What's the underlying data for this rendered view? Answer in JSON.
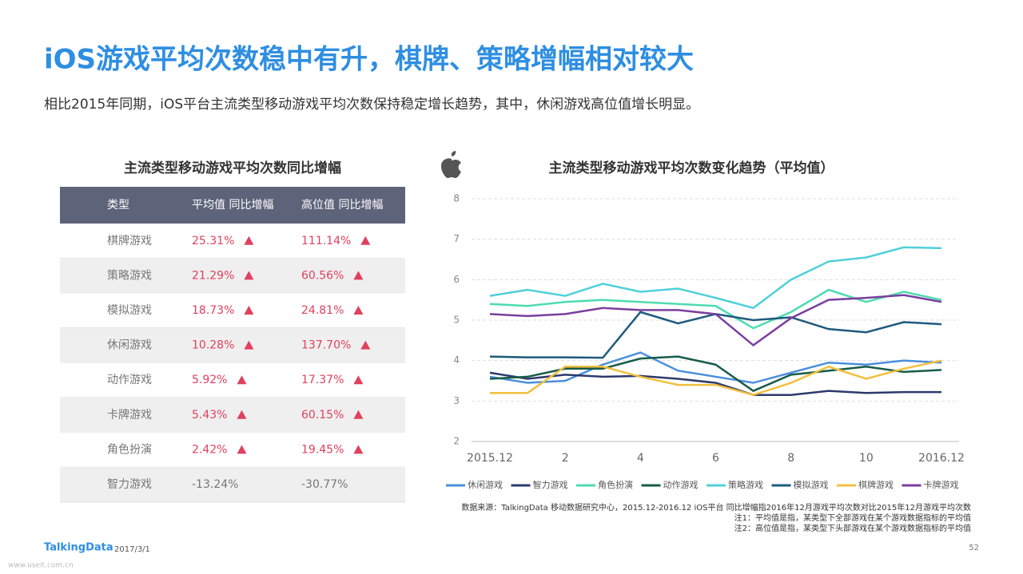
{
  "header": {
    "title": "iOS游戏平均次数稳中有升，棋牌、策略增幅相对较大",
    "subtitle": "相比2015年同期，iOS平台主流类型移动游戏平均次数保持稳定增长趋势，其中，休闲游戏高位值增长明显。"
  },
  "table": {
    "title": "主流类型移动游戏平均次数同比增幅",
    "columns": [
      "类型",
      "平均值 同比增幅",
      "高位值 同比增幅"
    ],
    "rows": [
      [
        "棋牌游戏",
        "25.31%",
        "111.14%"
      ],
      [
        "策略游戏",
        "21.29%",
        "60.56%"
      ],
      [
        "模拟游戏",
        "18.73%",
        "24.81%"
      ],
      [
        "休闲游戏",
        "10.28%",
        "137.70%"
      ],
      [
        "动作游戏",
        "5.92%",
        "17.37%"
      ],
      [
        "卡牌游戏",
        "5.43%",
        "60.15%"
      ],
      [
        "角色扮演",
        "2.42%",
        "19.45%"
      ],
      [
        "智力游戏",
        "-13.24%",
        "-30.77%"
      ]
    ]
  },
  "chart_data": {
    "type": "line",
    "title": "主流类型移动游戏平均次数变化趋势（平均值）",
    "categories": [
      "2015.12",
      null,
      "2",
      null,
      "4",
      null,
      "6",
      null,
      "8",
      null,
      "10",
      null,
      "2016.12"
    ],
    "ylim": [
      2,
      8
    ],
    "yticks": [
      2,
      3,
      4,
      5,
      6,
      7,
      8
    ],
    "grid": true,
    "series": [
      {
        "name": "休闲游戏",
        "color": "#4a8fdc",
        "values": [
          3.6,
          3.45,
          3.5,
          3.9,
          4.2,
          3.75,
          3.6,
          3.45,
          3.7,
          3.95,
          3.9,
          4.0,
          3.95
        ]
      },
      {
        "name": "智力游戏",
        "color": "#2c3a6c",
        "values": [
          3.7,
          3.55,
          3.65,
          3.6,
          3.62,
          3.55,
          3.45,
          3.15,
          3.15,
          3.25,
          3.2,
          3.22,
          3.22
        ]
      },
      {
        "name": "角色扮演",
        "color": "#4ddbb0",
        "values": [
          5.4,
          5.35,
          5.45,
          5.5,
          5.45,
          5.4,
          5.35,
          4.8,
          5.2,
          5.75,
          5.45,
          5.7,
          5.5
        ]
      },
      {
        "name": "动作游戏",
        "color": "#175c48",
        "values": [
          3.55,
          3.6,
          3.8,
          3.8,
          4.05,
          4.1,
          3.9,
          3.25,
          3.65,
          3.75,
          3.85,
          3.72,
          3.77
        ]
      },
      {
        "name": "策略游戏",
        "color": "#4fd0da",
        "values": [
          5.6,
          5.75,
          5.6,
          5.9,
          5.7,
          5.78,
          5.55,
          5.3,
          6.0,
          6.45,
          6.55,
          6.8,
          6.78
        ]
      },
      {
        "name": "模拟游戏",
        "color": "#1e5a7c",
        "values": [
          4.1,
          4.08,
          4.08,
          4.07,
          5.2,
          4.92,
          5.15,
          5.0,
          5.07,
          4.78,
          4.7,
          4.95,
          4.9
        ]
      },
      {
        "name": "棋牌游戏",
        "color": "#f1c040",
        "values": [
          3.2,
          3.2,
          3.85,
          3.85,
          3.6,
          3.4,
          3.4,
          3.15,
          3.45,
          3.85,
          3.55,
          3.8,
          4.0
        ]
      },
      {
        "name": "卡牌游戏",
        "color": "#7a3e9f",
        "values": [
          5.15,
          5.1,
          5.15,
          5.3,
          5.25,
          5.25,
          5.15,
          4.38,
          5.05,
          5.5,
          5.55,
          5.62,
          5.45
        ]
      }
    ]
  },
  "footer": {
    "source": "数据来源：TalkingData 移动数据研究中心，2015.12-2016.12 iOS平台 同比增幅指2016年12月游戏平均次数对比2015年12月游戏平均次数",
    "note1": "注1：平均值是指，某类型下全部游戏在某个游戏数据指标的平均值",
    "note2": "注2：高位值是指，某类型下头部游戏在某个游戏数据指标的平均值",
    "logo": "TalkingData",
    "date": "2017/3/1",
    "page": "52",
    "watermark": "www.useit.com.cn"
  }
}
